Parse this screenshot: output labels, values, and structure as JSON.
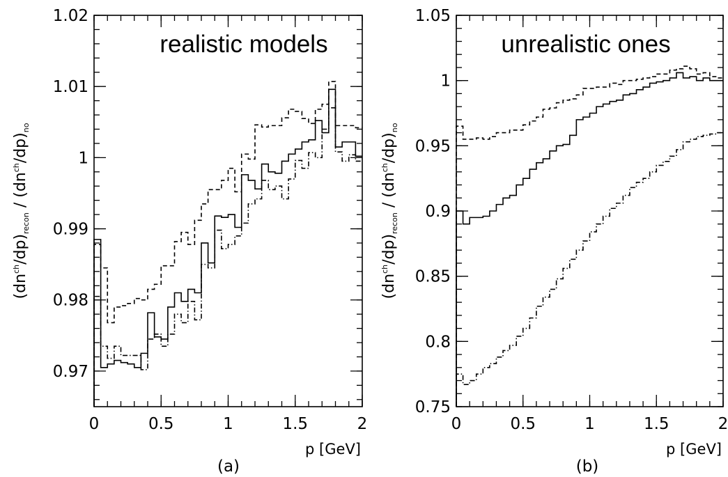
{
  "chart_data": [
    {
      "type": "line",
      "step": true,
      "title": "realistic models",
      "caption": "(a)",
      "xlabel": "p [GeV]",
      "ylabel": {
        "open1": "(dn",
        "sup1": "ch",
        "mid1": "/dp)",
        "sub1": "recon",
        "sep": " / (dn",
        "sup2": "ch",
        "mid2": "/dp)",
        "sub2": "no"
      },
      "xlim": [
        0,
        2
      ],
      "ylim": [
        0.965,
        1.02
      ],
      "xticks": [
        0,
        0.5,
        1,
        1.5,
        2
      ],
      "xticklabels": [
        "0",
        "0.5",
        "1",
        "1.5",
        "2"
      ],
      "yticks": [
        0.97,
        0.98,
        0.99,
        1,
        1.01,
        1.02
      ],
      "yticklabels": [
        "0.97",
        "0.98",
        "0.99",
        "1",
        "1.01",
        "1.02"
      ],
      "grid": false,
      "bin_width": 0.05,
      "series": [
        {
          "style": "solid",
          "values": [
            0.9885,
            0.9705,
            0.971,
            0.9715,
            0.9712,
            0.971,
            0.9705,
            0.9725,
            0.9782,
            0.9748,
            0.9745,
            0.979,
            0.981,
            0.9798,
            0.9815,
            0.981,
            0.988,
            0.9852,
            0.9918,
            0.9916,
            0.992,
            0.9902,
            0.9976,
            0.9968,
            0.9956,
            0.9991,
            0.998,
            0.9978,
            0.9995,
            1.0005,
            1.0012,
            1.0022,
            1.0025,
            1.0052,
            1.0035,
            1.0096,
            1.0015,
            1.0022,
            1.0022,
            1.0002
          ]
        },
        {
          "style": "dashed",
          "values": [
            0.9878,
            0.9845,
            0.9768,
            0.979,
            0.9792,
            0.9795,
            0.9802,
            0.98,
            0.9815,
            0.9822,
            0.9848,
            0.9848,
            0.9882,
            0.9895,
            0.9878,
            0.9912,
            0.9935,
            0.9955,
            0.9955,
            0.9968,
            0.9985,
            0.9952,
            1.0005,
            0.9998,
            1.0046,
            1.0043,
            1.0045,
            1.0045,
            1.0056,
            1.0068,
            1.0065,
            1.0055,
            1.0048,
            1.0068,
            1.0075,
            1.0107,
            1.0045,
            1.0045,
            1.0045,
            1.0042
          ]
        },
        {
          "style": "dashdot",
          "values": [
            0.9805,
            0.9735,
            0.9718,
            0.9735,
            0.9722,
            0.9722,
            0.9722,
            0.9702,
            0.9745,
            0.9752,
            0.9735,
            0.9752,
            0.978,
            0.9768,
            0.9798,
            0.9772,
            0.985,
            0.9845,
            0.9898,
            0.9872,
            0.9878,
            0.989,
            0.9908,
            0.9935,
            0.9942,
            0.9968,
            0.9955,
            0.996,
            0.9942,
            0.997,
            0.9996,
            0.9985,
            1.0007,
            1.0,
            1.004,
            1.007,
            1.0008,
            0.9995,
            1.0004,
            0.9995
          ]
        }
      ]
    },
    {
      "type": "line",
      "step": true,
      "title": "unrealistic ones",
      "caption": "(b)",
      "xlabel": "p [GeV]",
      "ylabel": {
        "open1": "(dn",
        "sup1": "ch",
        "mid1": "/dp)",
        "sub1": "recon",
        "sep": " / (dn",
        "sup2": "ch",
        "mid2": "/dp)",
        "sub2": "no"
      },
      "xlim": [
        0,
        2
      ],
      "ylim": [
        0.75,
        1.05
      ],
      "xticks": [
        0,
        0.5,
        1,
        1.5,
        2
      ],
      "xticklabels": [
        "0",
        "0.5",
        "1",
        "1.5",
        "2"
      ],
      "yticks": [
        0.75,
        0.8,
        0.85,
        0.9,
        0.95,
        1,
        1.05
      ],
      "yticklabels": [
        "0.75",
        "0.8",
        "0.85",
        "0.9",
        "0.95",
        "1",
        "1.05"
      ],
      "grid": false,
      "bin_width": 0.05,
      "series": [
        {
          "style": "solid",
          "values": [
            0.9,
            0.89,
            0.895,
            0.895,
            0.896,
            0.9,
            0.905,
            0.91,
            0.912,
            0.92,
            0.925,
            0.932,
            0.937,
            0.94,
            0.946,
            0.95,
            0.951,
            0.958,
            0.97,
            0.972,
            0.975,
            0.98,
            0.982,
            0.984,
            0.985,
            0.989,
            0.99,
            0.993,
            0.995,
            0.998,
            0.999,
            1.0,
            1.002,
            1.006,
            1.002,
            1.003,
            1.0,
            1.002,
            1.0,
            1.0
          ]
        },
        {
          "style": "dashed",
          "values": [
            0.965,
            0.955,
            0.955,
            0.956,
            0.955,
            0.957,
            0.96,
            0.96,
            0.962,
            0.962,
            0.966,
            0.969,
            0.972,
            0.978,
            0.979,
            0.983,
            0.985,
            0.986,
            0.989,
            0.994,
            0.994,
            0.995,
            0.995,
            0.998,
            0.997,
            1.0,
            1.0,
            1.001,
            1.002,
            1.003,
            1.005,
            1.005,
            1.008,
            1.009,
            1.011,
            1.009,
            1.005,
            1.006,
            1.003,
            1.002
          ]
        },
        {
          "style": "dashdot",
          "values": [
            0.775,
            0.767,
            0.77,
            0.775,
            0.78,
            0.783,
            0.788,
            0.793,
            0.797,
            0.804,
            0.81,
            0.818,
            0.827,
            0.834,
            0.84,
            0.848,
            0.856,
            0.863,
            0.87,
            0.877,
            0.884,
            0.89,
            0.896,
            0.902,
            0.906,
            0.912,
            0.918,
            0.922,
            0.925,
            0.93,
            0.935,
            0.938,
            0.942,
            0.947,
            0.953,
            0.955,
            0.957,
            0.958,
            0.959,
            0.96
          ]
        }
      ]
    }
  ]
}
